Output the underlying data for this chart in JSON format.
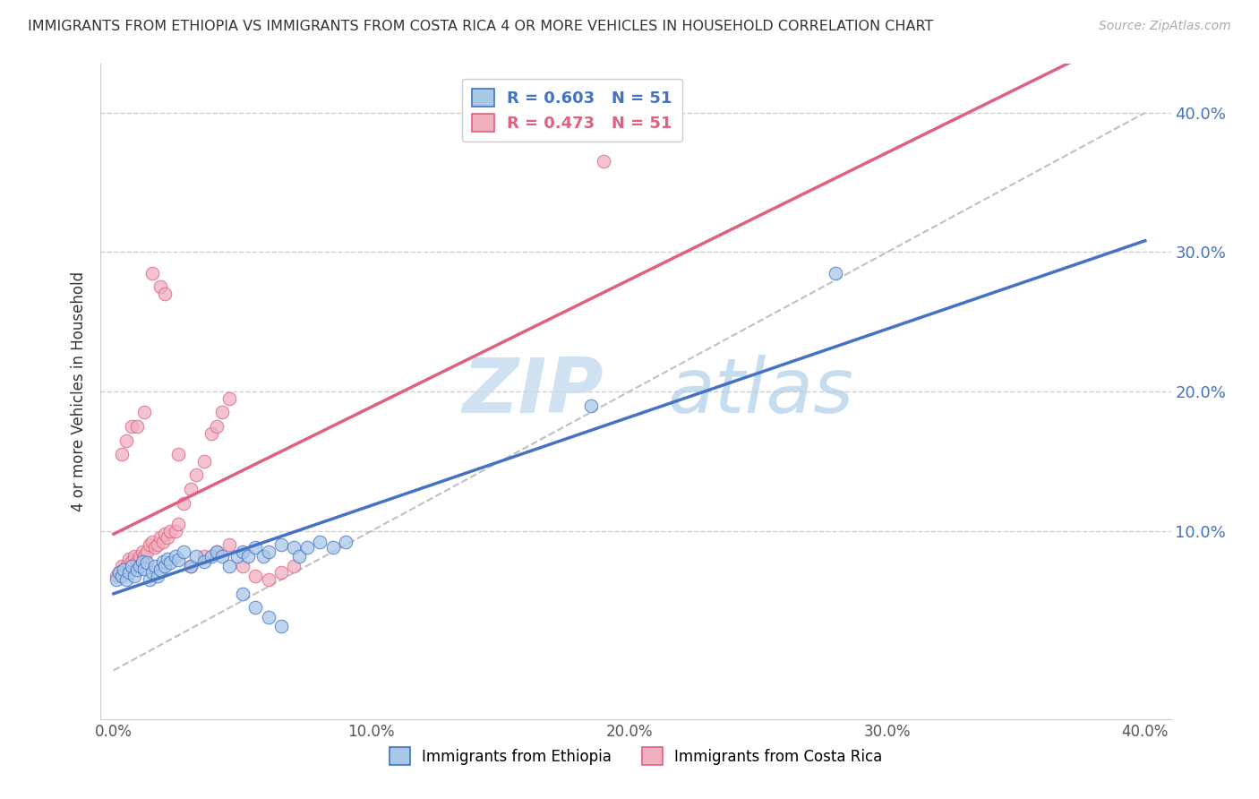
{
  "title": "IMMIGRANTS FROM ETHIOPIA VS IMMIGRANTS FROM COSTA RICA 4 OR MORE VEHICLES IN HOUSEHOLD CORRELATION CHART",
  "source": "Source: ZipAtlas.com",
  "ylabel": "4 or more Vehicles in Household",
  "legend_label_1": "Immigrants from Ethiopia",
  "legend_label_2": "Immigrants from Costa Rica",
  "R1": 0.603,
  "R2": 0.473,
  "N1": 51,
  "N2": 51,
  "xlim": [
    -0.005,
    0.41
  ],
  "ylim": [
    -0.035,
    0.435
  ],
  "xticks": [
    0.0,
    0.1,
    0.2,
    0.3,
    0.4
  ],
  "yticks": [
    0.1,
    0.2,
    0.3,
    0.4
  ],
  "color_ethiopia": "#A8C8E8",
  "color_costa_rica": "#F0B0C0",
  "color_line_ethiopia": "#4472C4",
  "color_line_costa_rica": "#E06080",
  "color_ref_line": "#C0C0C0",
  "background_color": "#FFFFFF",
  "watermark_zip": "ZIP",
  "watermark_atlas": "atlas",
  "eth_x": [
    0.001,
    0.002,
    0.003,
    0.004,
    0.005,
    0.006,
    0.007,
    0.008,
    0.009,
    0.01,
    0.011,
    0.012,
    0.013,
    0.014,
    0.015,
    0.016,
    0.017,
    0.018,
    0.019,
    0.02,
    0.021,
    0.022,
    0.024,
    0.025,
    0.027,
    0.03,
    0.032,
    0.035,
    0.038,
    0.04,
    0.042,
    0.045,
    0.048,
    0.05,
    0.052,
    0.055,
    0.058,
    0.06,
    0.065,
    0.07,
    0.072,
    0.075,
    0.08,
    0.085,
    0.09,
    0.05,
    0.055,
    0.06,
    0.065,
    0.185,
    0.28
  ],
  "eth_y": [
    0.065,
    0.07,
    0.068,
    0.072,
    0.065,
    0.07,
    0.075,
    0.068,
    0.072,
    0.075,
    0.078,
    0.073,
    0.077,
    0.065,
    0.07,
    0.075,
    0.068,
    0.072,
    0.078,
    0.075,
    0.08,
    0.077,
    0.082,
    0.079,
    0.085,
    0.075,
    0.082,
    0.078,
    0.082,
    0.085,
    0.082,
    0.075,
    0.082,
    0.085,
    0.082,
    0.088,
    0.082,
    0.085,
    0.09,
    0.088,
    0.082,
    0.088,
    0.092,
    0.088,
    0.092,
    0.055,
    0.045,
    0.038,
    0.032,
    0.19,
    0.285
  ],
  "cr_x": [
    0.001,
    0.002,
    0.003,
    0.004,
    0.005,
    0.006,
    0.007,
    0.008,
    0.009,
    0.01,
    0.011,
    0.012,
    0.013,
    0.014,
    0.015,
    0.016,
    0.017,
    0.018,
    0.019,
    0.02,
    0.021,
    0.022,
    0.024,
    0.025,
    0.027,
    0.03,
    0.032,
    0.035,
    0.038,
    0.04,
    0.042,
    0.045,
    0.003,
    0.005,
    0.007,
    0.009,
    0.012,
    0.015,
    0.018,
    0.02,
    0.025,
    0.03,
    0.035,
    0.04,
    0.045,
    0.05,
    0.055,
    0.06,
    0.065,
    0.07,
    0.19
  ],
  "cr_y": [
    0.068,
    0.07,
    0.075,
    0.072,
    0.075,
    0.08,
    0.078,
    0.082,
    0.078,
    0.082,
    0.085,
    0.082,
    0.085,
    0.09,
    0.092,
    0.088,
    0.09,
    0.095,
    0.092,
    0.098,
    0.095,
    0.1,
    0.1,
    0.105,
    0.12,
    0.13,
    0.14,
    0.15,
    0.17,
    0.175,
    0.185,
    0.195,
    0.155,
    0.165,
    0.175,
    0.175,
    0.185,
    0.285,
    0.275,
    0.27,
    0.155,
    0.075,
    0.082,
    0.085,
    0.09,
    0.075,
    0.068,
    0.065,
    0.07,
    0.075,
    0.365
  ]
}
